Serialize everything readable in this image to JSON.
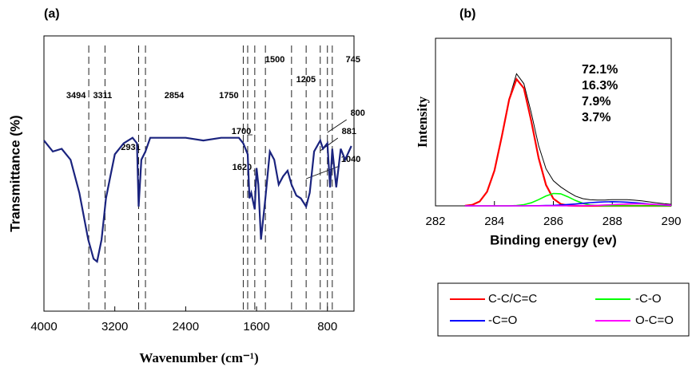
{
  "chart_data": [
    {
      "type": "line",
      "panel": "(a)",
      "x_label": "Wavenumber (cm⁻¹)",
      "y_label": "Transmittance (%)",
      "xlim": [
        4000,
        500
      ],
      "ylim": [
        0,
        100
      ],
      "xticks": [
        4000,
        3200,
        2400,
        1600,
        800
      ],
      "color": "#1a237e",
      "x": [
        4000,
        3900,
        3800,
        3700,
        3600,
        3500,
        3440,
        3400,
        3350,
        3300,
        3250,
        3200,
        3100,
        3000,
        2950,
        2931,
        2900,
        2854,
        2800,
        2600,
        2400,
        2200,
        2000,
        1800,
        1750,
        1700,
        1680,
        1660,
        1620,
        1600,
        1580,
        1550,
        1500,
        1450,
        1400,
        1350,
        1300,
        1250,
        1205,
        1150,
        1100,
        1040,
        1000,
        950,
        881,
        850,
        800,
        770,
        745,
        700,
        650,
        600,
        530
      ],
      "values": [
        62,
        58,
        59,
        55,
        43,
        26,
        19,
        18,
        26,
        41,
        49,
        57,
        61,
        63,
        61,
        38,
        55,
        58,
        63,
        63,
        63,
        62,
        63,
        63,
        61,
        57,
        41,
        43,
        37,
        52,
        46,
        26,
        41,
        58,
        55,
        46,
        49,
        51,
        46,
        42,
        41,
        38,
        43,
        58,
        62,
        59,
        61,
        45,
        59,
        45,
        59,
        55,
        60
      ],
      "peaks": [
        3494,
        3311,
        2931,
        2854,
        1750,
        1700,
        1620,
        1500,
        1205,
        1040,
        881,
        800,
        745
      ]
    },
    {
      "type": "line",
      "panel": "(b)",
      "x_label": "Binding energy (ev)",
      "y_label": "Intensity",
      "xlim": [
        282,
        290
      ],
      "ylim": [
        0,
        100
      ],
      "xticks": [
        282,
        284,
        286,
        288,
        290
      ],
      "x": [
        283,
        283.25,
        283.5,
        283.75,
        284,
        284.25,
        284.5,
        284.75,
        285,
        285.25,
        285.5,
        285.75,
        286,
        286.25,
        286.5,
        286.75,
        287,
        287.25,
        287.5,
        287.75,
        288,
        288.25,
        288.5,
        288.75,
        289,
        289.25,
        289.5,
        289.75,
        290
      ],
      "envelope": {
        "color": "#000000",
        "values": [
          0.1,
          0.6,
          2.6,
          8.4,
          21.1,
          41.5,
          64,
          78.8,
          72.9,
          55.6,
          35.8,
          22.1,
          15.0,
          11.3,
          8.4,
          5.8,
          4.3,
          3.6,
          3.5,
          3.5,
          3.7,
          3.7,
          3.7,
          3.4,
          3.0,
          2.4,
          1.8,
          1.3,
          0.9
        ]
      },
      "series": [
        {
          "name": "C-C/C=C",
          "color": "#ff0000",
          "values": [
            0.1,
            0.6,
            2.6,
            8.4,
            21.1,
            41.5,
            63.5,
            75.6,
            70.2,
            50.7,
            28.5,
            12.5,
            4.3,
            1.1,
            0.2,
            0,
            0,
            0,
            0,
            0,
            0,
            0,
            0,
            0,
            0,
            0,
            0,
            0,
            0
          ]
        },
        {
          "name": "-C-O",
          "color": "#00ff00",
          "values": [
            0,
            0,
            0,
            0,
            0,
            0,
            0,
            0.2,
            0.7,
            1.8,
            3.7,
            5.9,
            7.4,
            7.2,
            5.4,
            3.2,
            1.5,
            0.5,
            0.2,
            0,
            0,
            0,
            0,
            0,
            0,
            0,
            0,
            0,
            0
          ]
        },
        {
          "name": "-C=O",
          "color": "#0000ff",
          "values": [
            0,
            0,
            0,
            0,
            0,
            0,
            0,
            0,
            0,
            0.1,
            0.1,
            0.2,
            0.3,
            0.5,
            0.8,
            1.1,
            1.5,
            1.9,
            2.2,
            2.4,
            2.5,
            2.4,
            2.2,
            1.9,
            1.5,
            1.1,
            0.8,
            0.5,
            0.3
          ]
        },
        {
          "name": "O-C=O",
          "color": "#ff00ff",
          "values": [
            0,
            0,
            0,
            0,
            0,
            0,
            0,
            0,
            0,
            0,
            0,
            0,
            0,
            0,
            0,
            0,
            0.1,
            0.2,
            0.3,
            0.5,
            0.7,
            0.9,
            1.1,
            1.2,
            1.2,
            1.0,
            0.8,
            0.6,
            0.4
          ]
        }
      ],
      "annotations": [
        {
          "text": "72.1%",
          "color": "#ff0000"
        },
        {
          "text": "16.3%",
          "color": "#00ff00"
        },
        {
          "text": "7.9%",
          "color": "#0000ff"
        },
        {
          "text": "3.7%",
          "color": "#ff00ff"
        }
      ]
    }
  ]
}
